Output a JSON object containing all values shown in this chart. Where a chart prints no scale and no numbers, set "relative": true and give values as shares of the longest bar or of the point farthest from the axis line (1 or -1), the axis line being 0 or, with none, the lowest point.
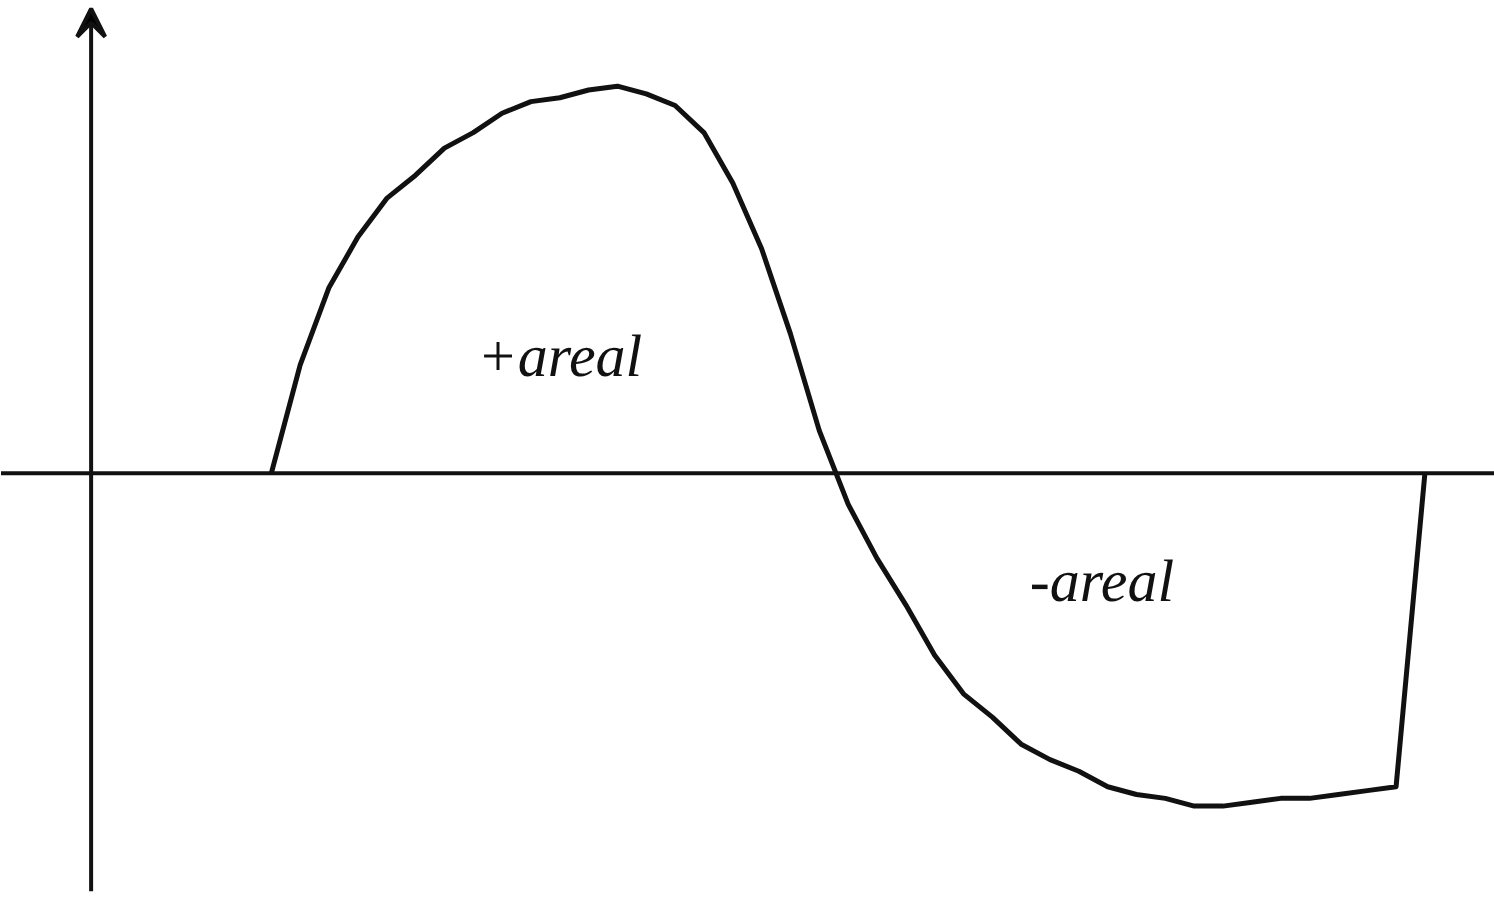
{
  "chart_data": {
    "type": "line",
    "relative": true,
    "tick_labels": false,
    "categories": [
      null,
      null,
      null,
      null,
      null,
      null,
      null,
      null,
      null,
      null,
      null,
      null,
      null,
      null,
      null,
      null,
      null,
      null,
      null,
      null,
      null,
      null,
      null,
      null,
      null,
      null,
      null,
      null,
      null,
      null,
      null,
      null,
      null,
      null,
      null,
      null,
      null,
      null,
      null,
      null,
      null
    ],
    "series": [
      {
        "color": "#111111",
        "values": [
          0,
          0.28,
          0.48,
          0.61,
          0.71,
          0.77,
          0.84,
          0.88,
          0.93,
          0.96,
          0.97,
          0.99,
          1.0,
          0.98,
          0.95,
          0.88,
          0.75,
          0.58,
          0.36,
          0.11,
          -0.08,
          -0.22,
          -0.34,
          -0.47,
          -0.57,
          -0.63,
          -0.7,
          -0.74,
          -0.77,
          -0.81,
          -0.83,
          -0.84,
          -0.86,
          -0.86,
          -0.85,
          -0.84,
          -0.84,
          -0.83,
          -0.82,
          -0.81,
          0
        ]
      }
    ],
    "annotations": [
      "+areal",
      "-areal"
    ]
  }
}
